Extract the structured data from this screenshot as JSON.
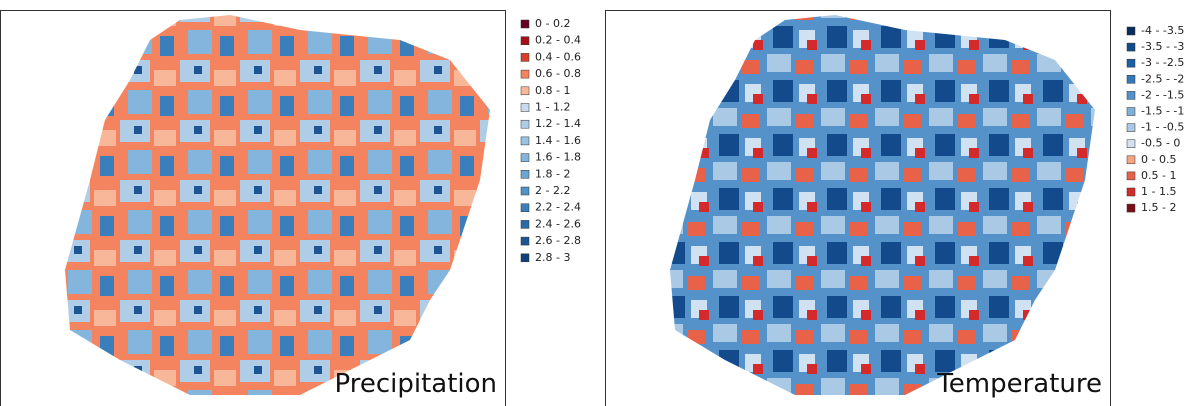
{
  "panels": [
    {
      "title": "Precipitation",
      "legend": [
        {
          "label": "0 - 0.2",
          "color": "#67001f"
        },
        {
          "label": "0.2 - 0.4",
          "color": "#a50f15"
        },
        {
          "label": "0.4 - 0.6",
          "color": "#d6402b"
        },
        {
          "label": "0.6 - 0.8",
          "color": "#f4835f"
        },
        {
          "label": "0.8 - 1",
          "color": "#f9b79a"
        },
        {
          "label": "1 - 1.2",
          "color": "#c6dbef"
        },
        {
          "label": "1.2 - 1.4",
          "color": "#b0cde8"
        },
        {
          "label": "1.4 - 1.6",
          "color": "#9ac2e3"
        },
        {
          "label": "1.6 - 1.8",
          "color": "#84b5dc"
        },
        {
          "label": "1.8 - 2",
          "color": "#6aa5d3"
        },
        {
          "label": "2 - 2.2",
          "color": "#4f93c7"
        },
        {
          "label": "2.2 - 2.4",
          "color": "#3a7fbb"
        },
        {
          "label": "2.4 - 2.6",
          "color": "#2a6aa8"
        },
        {
          "label": "2.6 - 2.8",
          "color": "#1b5593"
        },
        {
          "label": "2.8 - 3",
          "color": "#0d3f7a"
        }
      ]
    },
    {
      "title": "Temperature",
      "legend": [
        {
          "label": "-4 - -3.5",
          "color": "#0b2d5c"
        },
        {
          "label": "-3.5 - -3",
          "color": "#124a8c"
        },
        {
          "label": "-3 - -2.5",
          "color": "#1c5ea5"
        },
        {
          "label": "-2.5 - -2",
          "color": "#3478bb"
        },
        {
          "label": "-2 - -1.5",
          "color": "#5592c9"
        },
        {
          "label": "-1.5 - -1",
          "color": "#7fb0d8"
        },
        {
          "label": "-1 - -0.5",
          "color": "#aac9e5"
        },
        {
          "label": "-0.5 - 0",
          "color": "#d0e2f2"
        },
        {
          "label": "0 - 0.5",
          "color": "#f4a582"
        },
        {
          "label": "0.5 - 1",
          "color": "#e8624a"
        },
        {
          "label": "1 - 1.5",
          "color": "#d42a2b"
        },
        {
          "label": "1.5 - 2",
          "color": "#7a0c16"
        }
      ]
    }
  ]
}
